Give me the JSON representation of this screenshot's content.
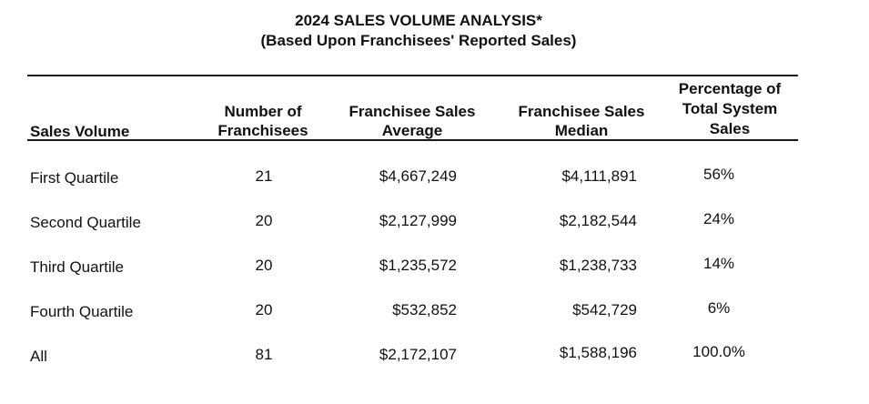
{
  "title": "2024 SALES VOLUME ANALYSIS*",
  "subtitle": "(Based Upon Franchisees' Reported Sales)",
  "columns": {
    "sales_volume": [
      "Sales Volume"
    ],
    "num_franchisees": [
      "Number of",
      "Franchisees"
    ],
    "avg_sales": [
      "Franchisee Sales",
      "Average"
    ],
    "median_sales": [
      "Franchisee Sales",
      "Median"
    ],
    "pct_total": [
      "Percentage of",
      "Total System",
      "Sales"
    ]
  },
  "rows": [
    {
      "label": "First Quartile",
      "count": "21",
      "average": "$4,667,249",
      "median": "$4,111,891",
      "percent": "56%"
    },
    {
      "label": "Second Quartile",
      "count": "20",
      "average": "$2,127,999",
      "median": "$2,182,544",
      "percent": "24%"
    },
    {
      "label": "Third Quartile",
      "count": "20",
      "average": "$1,235,572",
      "median": "$1,238,733",
      "percent": "14%"
    },
    {
      "label": "Fourth Quartile",
      "count": "20",
      "average": "$532,852",
      "median": "$542,729",
      "percent": "6%"
    },
    {
      "label": "All",
      "count": "81",
      "average": "$2,172,107",
      "median": "$1,588,196",
      "percent": "100.0%"
    }
  ]
}
